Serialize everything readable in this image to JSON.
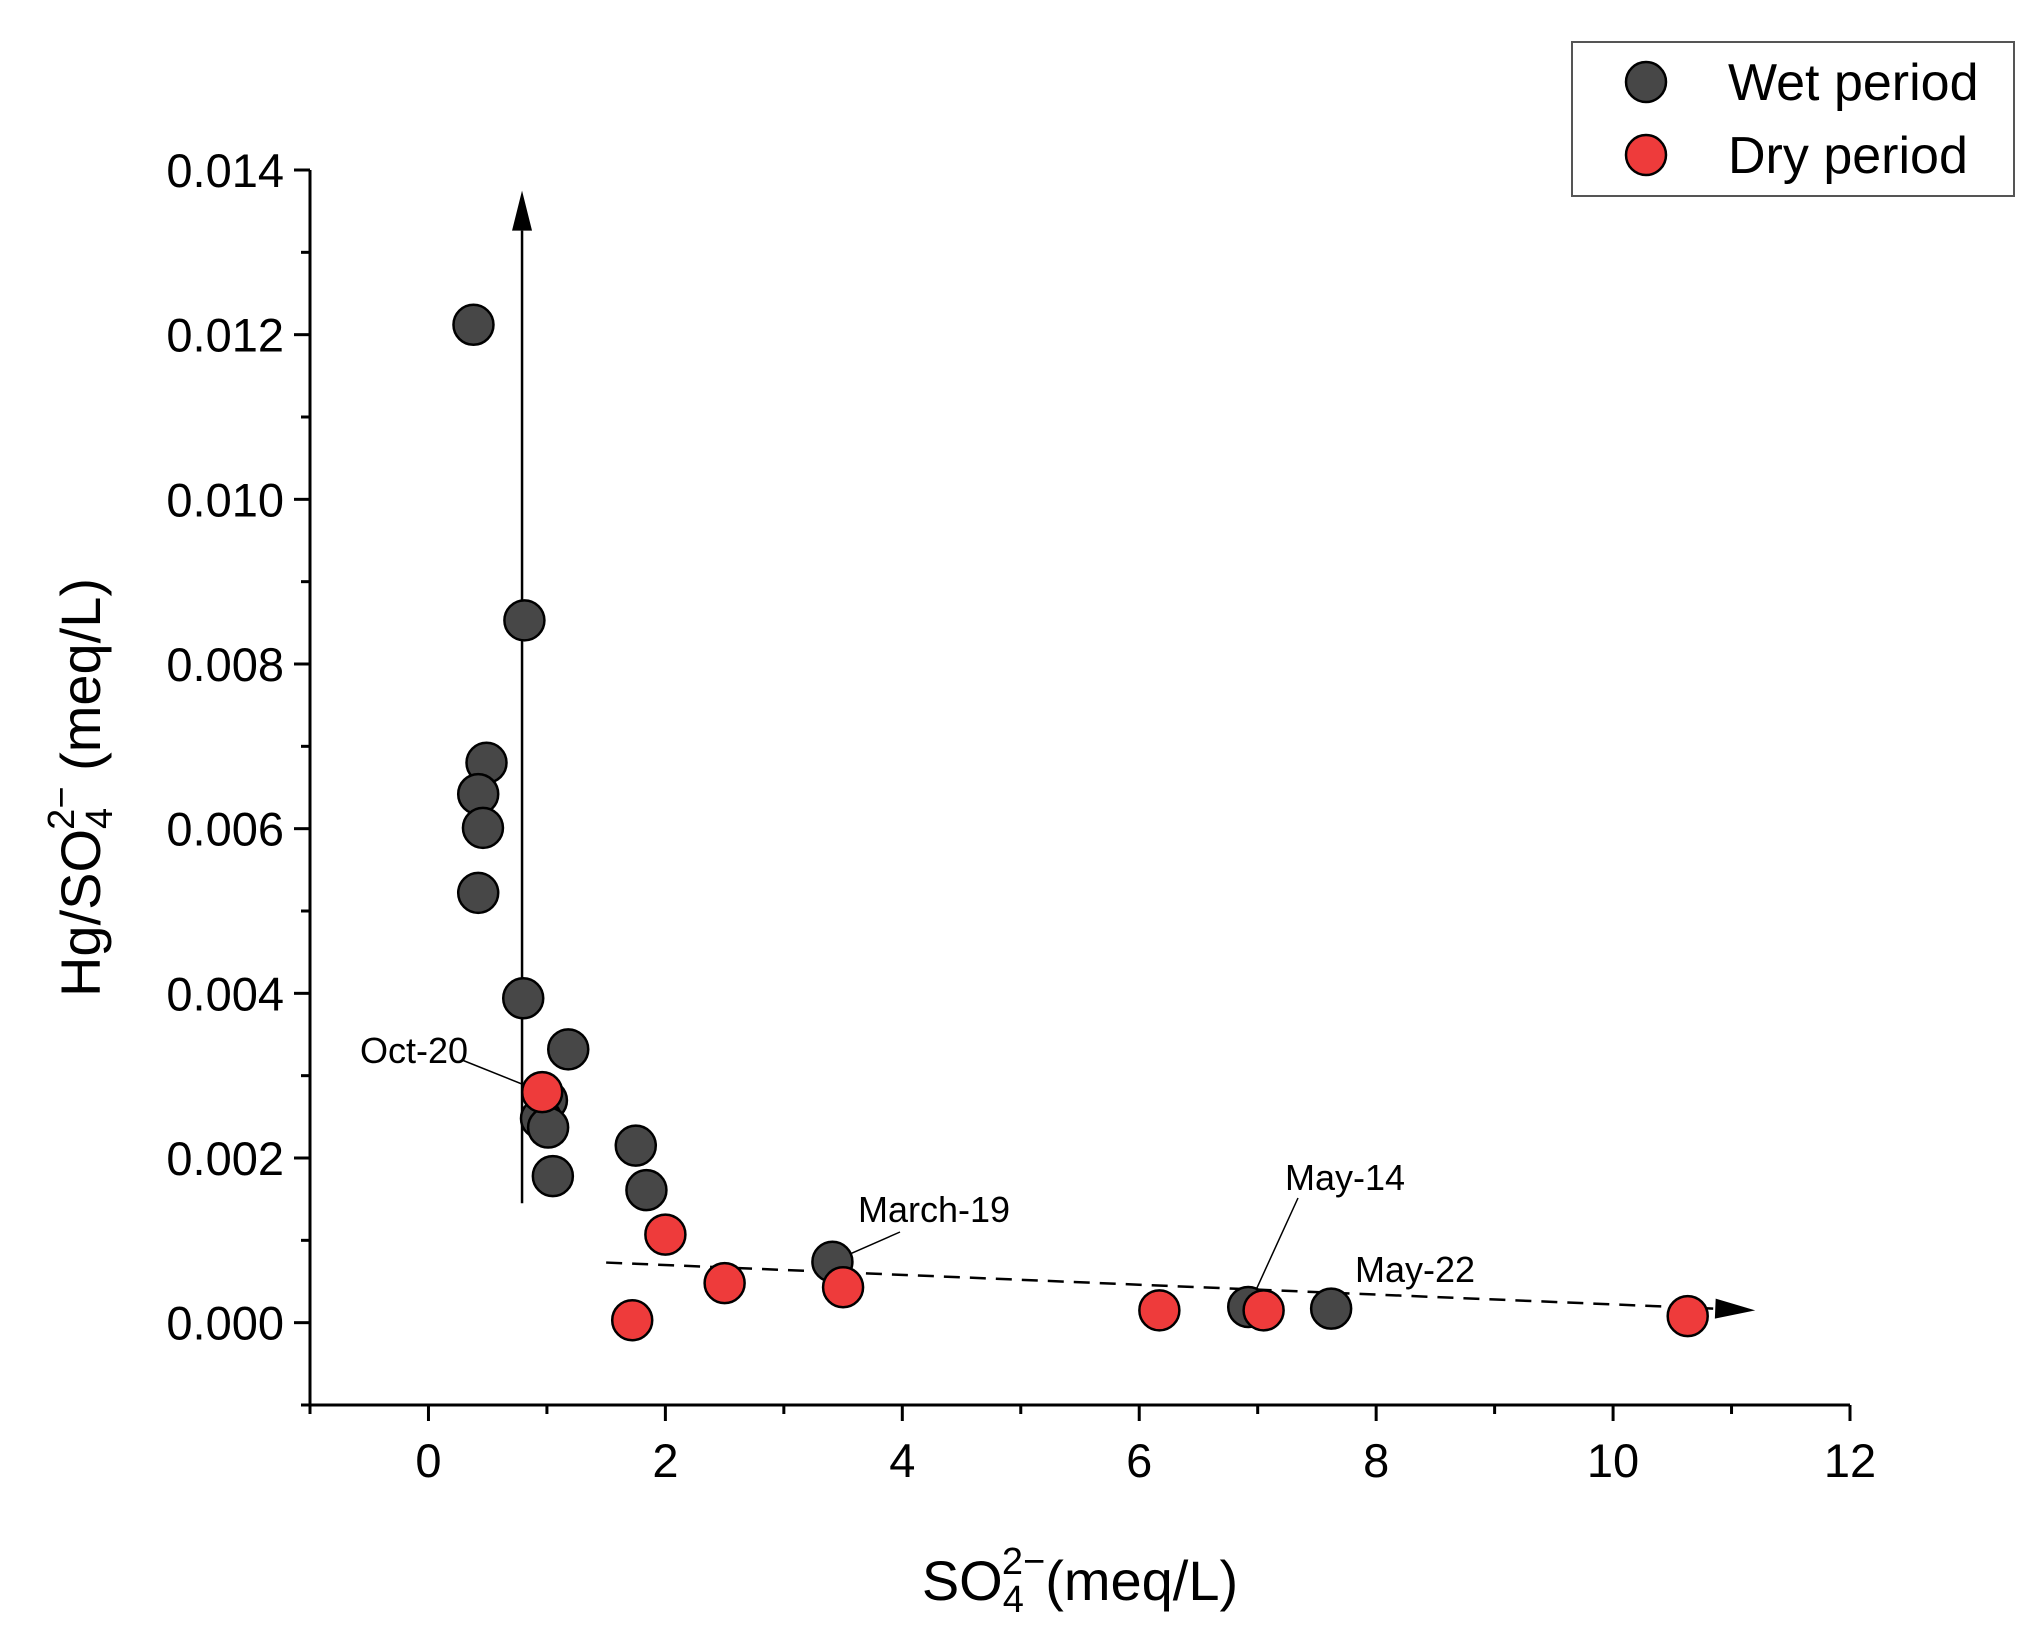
{
  "chart_data": {
    "type": "scatter",
    "title": "",
    "xlabel": {
      "base": "SO",
      "sub": "4",
      "sup": "2−",
      "suffix": "(meq/L)"
    },
    "ylabel": {
      "prefix": "Hg/SO",
      "sub": "4",
      "sup": "2−",
      "suffix": " (meq/L)"
    },
    "xlim": [
      -1,
      12
    ],
    "ylim": [
      -0.001,
      0.014
    ],
    "x_ticks": [
      0,
      2,
      4,
      6,
      8,
      10,
      12
    ],
    "x_tick_labels": [
      "0",
      "2",
      "4",
      "6",
      "8",
      "10",
      "12"
    ],
    "y_ticks": [
      0,
      0.002,
      0.004,
      0.006,
      0.008,
      0.01,
      0.012,
      0.014
    ],
    "y_tick_labels": [
      "0.000",
      "0.002",
      "0.004",
      "0.006",
      "0.008",
      "0.010",
      "0.012",
      "0.014"
    ],
    "x_minor_step": 1,
    "y_minor_step": 0.001,
    "grid": false,
    "legend_position": "top-right",
    "series": [
      {
        "name": "Wet period",
        "color": "#474747",
        "points": [
          [
            0.38,
            0.01212
          ],
          [
            0.81,
            0.00853
          ],
          [
            0.49,
            0.0068
          ],
          [
            0.42,
            0.00642
          ],
          [
            0.46,
            0.00601
          ],
          [
            0.42,
            0.00522
          ],
          [
            0.8,
            0.00394
          ],
          [
            1.18,
            0.00332
          ],
          [
            1.0,
            0.0027
          ],
          [
            0.95,
            0.00248
          ],
          [
            1.01,
            0.00237
          ],
          [
            1.05,
            0.00178
          ],
          [
            1.75,
            0.00215
          ],
          [
            1.84,
            0.00161
          ],
          [
            3.41,
            0.00074
          ],
          [
            6.92,
            0.00019
          ],
          [
            7.62,
            0.00017
          ]
        ]
      },
      {
        "name": "Dry period",
        "color": "#ee3b3b",
        "points": [
          [
            0.96,
            0.0028
          ],
          [
            2.0,
            0.00107
          ],
          [
            2.5,
            0.00048
          ],
          [
            3.5,
            0.00043
          ],
          [
            1.72,
            3e-05
          ],
          [
            6.17,
            0.00015
          ],
          [
            7.05,
            0.00015
          ],
          [
            10.63,
            8e-05
          ]
        ]
      }
    ],
    "trend_lines": [
      {
        "name": "vertical-trend-arrow",
        "style": "solid",
        "from": [
          0.79,
          0.00145
        ],
        "to": [
          0.79,
          0.01375
        ]
      },
      {
        "name": "horizontal-trend-arrow",
        "style": "dashed",
        "from": [
          1.5,
          0.00073
        ],
        "to": [
          11.2,
          0.00015
        ]
      }
    ],
    "annotations": [
      {
        "text": "Oct-20",
        "point": [
          0.96,
          0.0028
        ]
      },
      {
        "text": "March-19",
        "point": [
          3.41,
          0.00074
        ]
      },
      {
        "text": "May-14",
        "point": [
          6.92,
          0.00019
        ]
      },
      {
        "text": "May-22",
        "point": null
      }
    ]
  }
}
